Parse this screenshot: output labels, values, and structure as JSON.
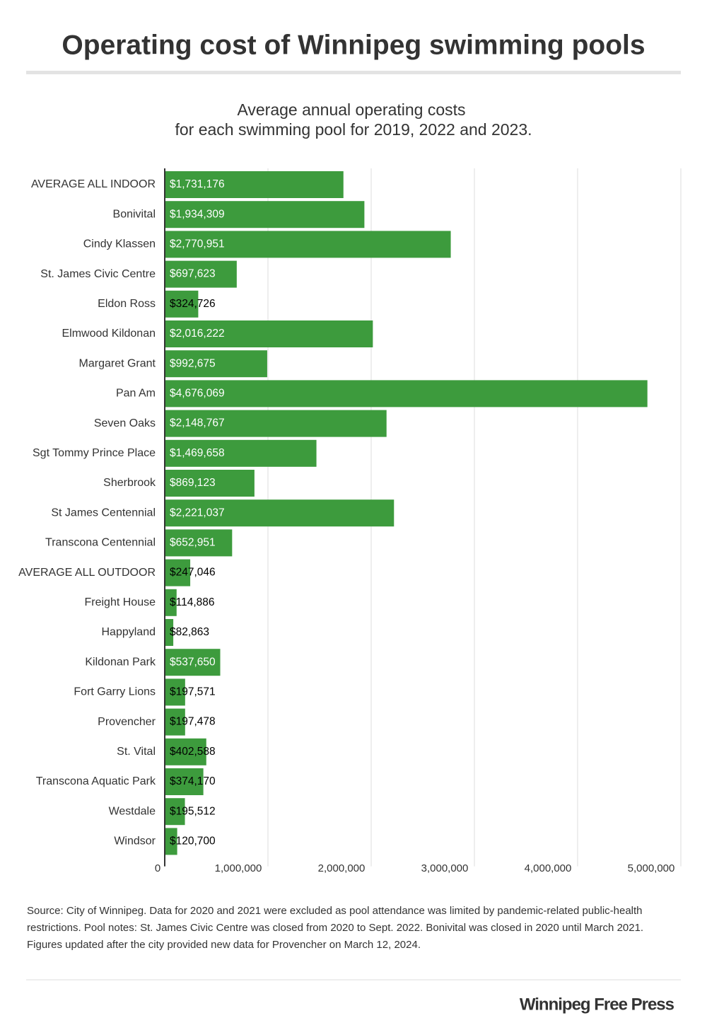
{
  "chart_data": {
    "type": "bar",
    "orientation": "horizontal",
    "title": "Operating cost of Winnipeg swimming pools",
    "subtitle": [
      "Average annual operating costs",
      "for each swimming pool for 2019, 2022 and 2023."
    ],
    "categories": [
      "AVERAGE ALL INDOOR",
      "Bonivital",
      "Cindy Klassen",
      "St. James Civic Centre",
      "Eldon Ross",
      "Elmwood Kildonan",
      "Margaret Grant",
      "Pan Am",
      "Seven Oaks",
      "Sgt Tommy Prince Place",
      "Sherbrook",
      "St James Centennial",
      "Transcona Centennial",
      "AVERAGE ALL OUTDOOR",
      "Freight House",
      "Happyland",
      "Kildonan Park",
      "Fort Garry Lions",
      "Provencher",
      "St. Vital",
      "Transcona Aquatic Park",
      "Westdale",
      "Windsor"
    ],
    "values": [
      1731176,
      1934309,
      2770951,
      697623,
      324726,
      2016222,
      992675,
      4676069,
      2148767,
      1469658,
      869123,
      2221037,
      652951,
      247046,
      114886,
      82863,
      537650,
      197571,
      197478,
      402588,
      374170,
      195512,
      120700
    ],
    "value_labels": [
      "$1,731,176",
      "$1,934,309",
      "$2,770,951",
      "$697,623",
      "$324,726",
      "$2,016,222",
      "$992,675",
      "$4,676,069",
      "$2,148,767",
      "$1,469,658",
      "$869,123",
      "$2,221,037",
      "$652,951",
      "$247,046",
      "$114,886",
      "$82,863",
      "$537,650",
      "$197,571",
      "$197,478",
      "$402,588",
      "$374,170",
      "$195,512",
      "$120,700"
    ],
    "color": "#3d9b3d",
    "xlim": [
      0,
      5000000
    ],
    "xticks": [
      0,
      {
        "value": 1000000,
        "label": "1,000,000"
      },
      {
        "value": 2000000,
        "label": "2,000,000"
      },
      {
        "value": 3000000,
        "label": "3,000,000"
      },
      {
        "value": 4000000,
        "label": "4,000,000"
      },
      {
        "value": 5000000,
        "label": "5,000,000"
      }
    ],
    "grid": true,
    "source": "Source: City of Winnipeg. Data for 2020 and 2021 were excluded as pool attendance was limited by pandemic-related public-health restrictions. Pool notes: St. James Civic Centre was closed from 2020 to Sept. 2022. Bonivital was closed in 2020 until March 2021. Figures updated after the city provided new data for Provencher on March 12, 2024.",
    "brand": "Winnipeg Free Press"
  }
}
